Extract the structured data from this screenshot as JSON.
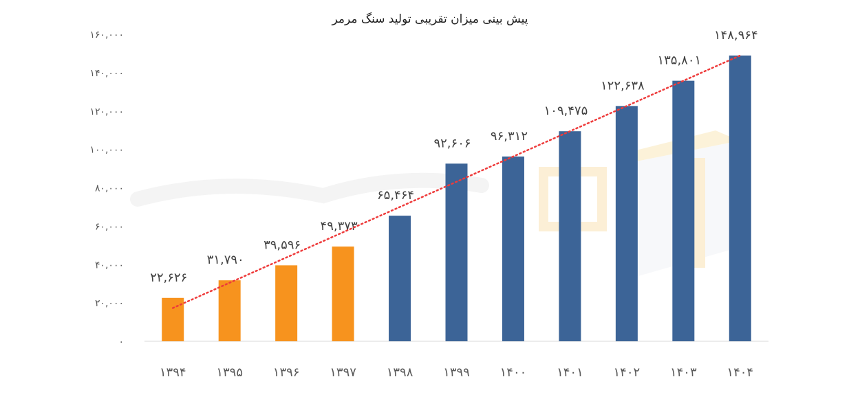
{
  "chart_data": {
    "type": "bar",
    "title": "پیش بینی میزان تقریبی تولید سنگ مرمر",
    "categories": [
      "۱۳۹۴",
      "۱۳۹۵",
      "۱۳۹۶",
      "۱۳۹۷",
      "۱۳۹۸",
      "۱۳۹۹",
      "۱۴۰۰",
      "۱۴۰۱",
      "۱۴۰۲",
      "۱۴۰۳",
      "۱۴۰۴"
    ],
    "values": [
      22626,
      31790,
      39596,
      49373,
      65464,
      92606,
      96312,
      109475,
      122638,
      135801,
      148964
    ],
    "value_labels": [
      "۲۲,۶۲۶",
      "۳۱,۷۹۰",
      "۳۹,۵۹۶",
      "۴۹,۳۷۳",
      "۶۵,۴۶۴",
      "۹۲,۶۰۶",
      "۹۶,۳۱۲",
      "۱۰۹,۴۷۵",
      "۱۲۲,۶۳۸",
      "۱۳۵,۸۰۱",
      "۱۴۸,۹۶۴"
    ],
    "bar_colors": [
      "#f7931e",
      "#f7931e",
      "#f7931e",
      "#f7931e",
      "#3c6497",
      "#3c6497",
      "#3c6497",
      "#3c6497",
      "#3c6497",
      "#3c6497",
      "#3c6497"
    ],
    "ylim": [
      0,
      160000
    ],
    "y_ticks": [
      0,
      20000,
      40000,
      60000,
      80000,
      100000,
      120000,
      140000,
      160000
    ],
    "y_tick_labels": [
      "۰",
      "۲۰,۰۰۰",
      "۴۰,۰۰۰",
      "۶۰,۰۰۰",
      "۸۰,۰۰۰",
      "۱۰۰,۰۰۰",
      "۱۲۰,۰۰۰",
      "۱۴۰,۰۰۰",
      "۱۶۰,۰۰۰"
    ],
    "xlabel": "",
    "ylabel": "",
    "grid": false,
    "trendline": {
      "type": "linear",
      "style": "dotted",
      "color": "#ee3b3b"
    }
  },
  "colors": {
    "actual": "#f7931e",
    "forecast": "#3c6497",
    "axis": "#d9d9d9"
  }
}
